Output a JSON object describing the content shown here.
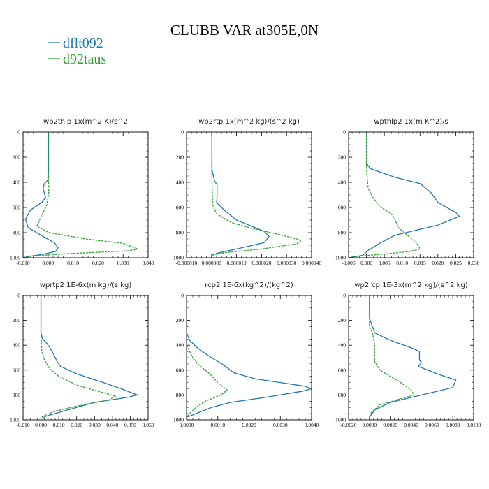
{
  "title": "CLUBB VAR at305E,0N",
  "legend": [
    {
      "label": "dflt092",
      "color": "#1f77b4"
    },
    {
      "label": "d92taus",
      "color": "#2ca02c"
    }
  ],
  "chart_data": [
    {
      "type": "line",
      "title": "wp2thlp   1x(m^2 K)/s^2",
      "xlim": [
        -0.01,
        0.04
      ],
      "ylim": [
        1000,
        0
      ],
      "xticks": [
        "-0.010",
        "0.000",
        "0.010",
        "0.020",
        "0.030",
        "0.040"
      ],
      "yticks": [
        "0",
        "200",
        "400",
        "600",
        "800",
        "1000"
      ],
      "series": [
        {
          "name": "dflt092",
          "points": [
            [
              0.0002,
              0
            ],
            [
              0.0002,
              300
            ],
            [
              0.0,
              380
            ],
            [
              -0.0015,
              410
            ],
            [
              -0.002,
              450
            ],
            [
              -0.001,
              520
            ],
            [
              -0.0025,
              560
            ],
            [
              -0.007,
              620
            ],
            [
              -0.009,
              690
            ],
            [
              -0.008,
              760
            ],
            [
              -0.002,
              830
            ],
            [
              0.0025,
              880
            ],
            [
              0.004,
              920
            ],
            [
              0.003,
              950
            ],
            [
              -0.003,
              975
            ],
            [
              -0.008,
              990
            ],
            [
              -0.01,
              1000
            ]
          ]
        },
        {
          "name": "d92taus",
          "points": [
            [
              0.0001,
              0
            ],
            [
              0.0001,
              300
            ],
            [
              0.0003,
              480
            ],
            [
              -0.0005,
              580
            ],
            [
              -0.003,
              680
            ],
            [
              -0.0045,
              750
            ],
            [
              0.0005,
              800
            ],
            [
              0.015,
              850
            ],
            [
              0.03,
              885
            ],
            [
              0.036,
              930
            ],
            [
              0.032,
              945
            ],
            [
              0.01,
              965
            ],
            [
              -0.006,
              985
            ],
            [
              -0.01,
              1000
            ]
          ]
        }
      ]
    },
    {
      "type": "line",
      "title": "wp2rtp   1x(m^2 kg)/(s^2 kg)",
      "xlim": [
        -1e-05,
        4e-05
      ],
      "ylim": [
        1000,
        0
      ],
      "xticks": [
        "-0.000010",
        "0.000000",
        "0.000010",
        "0.000020",
        "0.000030",
        "0.000040"
      ],
      "yticks": [
        "0",
        "200",
        "400",
        "600",
        "800",
        "1000"
      ],
      "series": [
        {
          "name": "dflt092",
          "points": [
            [
              1e-07,
              0
            ],
            [
              2e-07,
              300
            ],
            [
              1.2e-06,
              390
            ],
            [
              2.2e-06,
              420
            ],
            [
              2.2e-06,
              520
            ],
            [
              2e-06,
              560
            ],
            [
              3.5e-06,
              590
            ],
            [
              5e-06,
              620
            ],
            [
              1e-05,
              700
            ],
            [
              1.5e-05,
              740
            ],
            [
              2.1e-05,
              790
            ],
            [
              2.3e-05,
              830
            ],
            [
              2.1e-05,
              880
            ],
            [
              1e-05,
              930
            ],
            [
              3e-06,
              960
            ],
            [
              0.0,
              980
            ]
          ]
        },
        {
          "name": "d92taus",
          "points": [
            [
              1e-07,
              0
            ],
            [
              1e-07,
              300
            ],
            [
              3e-07,
              500
            ],
            [
              5e-07,
              580
            ],
            [
              2e-06,
              650
            ],
            [
              8e-06,
              720
            ],
            [
              1.5e-05,
              760
            ],
            [
              2.8e-05,
              820
            ],
            [
              3.6e-05,
              860
            ],
            [
              3.4e-05,
              890
            ],
            [
              2e-05,
              930
            ],
            [
              5e-06,
              960
            ],
            [
              0.0,
              980
            ]
          ]
        }
      ]
    },
    {
      "type": "line",
      "title": "wpthlp2   1x(m K^2)/s",
      "xlim": [
        -0.005,
        0.03
      ],
      "ylim": [
        1000,
        0
      ],
      "xticks": [
        "-0.005",
        "0.000",
        "0.005",
        "0.010",
        "0.015",
        "0.020",
        "0.025",
        "0.030"
      ],
      "yticks": [
        "0",
        "200",
        "400",
        "600",
        "800",
        "1000"
      ],
      "series": [
        {
          "name": "dflt092",
          "points": [
            [
              0.0001,
              0
            ],
            [
              0.0001,
              250
            ],
            [
              0.001,
              290
            ],
            [
              0.004,
              320
            ],
            [
              0.008,
              360
            ],
            [
              0.015,
              410
            ],
            [
              0.018,
              480
            ],
            [
              0.02,
              560
            ],
            [
              0.025,
              640
            ],
            [
              0.026,
              670
            ],
            [
              0.02,
              740
            ],
            [
              0.014,
              780
            ],
            [
              0.008,
              820
            ],
            [
              0.004,
              880
            ],
            [
              0.0005,
              940
            ],
            [
              -0.001,
              980
            ],
            [
              -0.005,
              1000
            ]
          ]
        },
        {
          "name": "d92taus",
          "points": [
            [
              0.0,
              0
            ],
            [
              0.0,
              300
            ],
            [
              0.0005,
              450
            ],
            [
              0.002,
              530
            ],
            [
              0.004,
              600
            ],
            [
              0.007,
              650
            ],
            [
              0.008,
              700
            ],
            [
              0.009,
              760
            ],
            [
              0.011,
              810
            ],
            [
              0.014,
              880
            ],
            [
              0.015,
              930
            ],
            [
              0.012,
              950
            ],
            [
              0.005,
              970
            ],
            [
              -0.003,
              990
            ],
            [
              -0.005,
              1000
            ]
          ]
        }
      ]
    },
    {
      "type": "line",
      "title": "wprtp2   1E-6x(m kg)/(s kg)",
      "xlim": [
        -0.01,
        0.06
      ],
      "ylim": [
        1000,
        0
      ],
      "xticks": [
        "-0.010",
        "0.000",
        "0.010",
        "0.020",
        "0.030",
        "0.040",
        "0.050",
        "0.060"
      ],
      "yticks": [
        "0",
        "200",
        "400",
        "600",
        "800",
        "1000"
      ],
      "series": [
        {
          "name": "dflt092",
          "points": [
            [
              0.0,
              0
            ],
            [
              0.0,
              300
            ],
            [
              0.001,
              350
            ],
            [
              0.003,
              380
            ],
            [
              0.005,
              420
            ],
            [
              0.007,
              470
            ],
            [
              0.009,
              530
            ],
            [
              0.011,
              570
            ],
            [
              0.02,
              630
            ],
            [
              0.035,
              700
            ],
            [
              0.045,
              750
            ],
            [
              0.054,
              800
            ],
            [
              0.048,
              820
            ],
            [
              0.03,
              860
            ],
            [
              0.015,
              920
            ],
            [
              0.003,
              970
            ],
            [
              0.0,
              990
            ]
          ]
        },
        {
          "name": "d92taus",
          "points": [
            [
              0.0,
              0
            ],
            [
              0.0,
              300
            ],
            [
              0.0005,
              450
            ],
            [
              0.002,
              520
            ],
            [
              0.005,
              590
            ],
            [
              0.01,
              650
            ],
            [
              0.02,
              720
            ],
            [
              0.032,
              770
            ],
            [
              0.042,
              810
            ],
            [
              0.038,
              840
            ],
            [
              0.02,
              890
            ],
            [
              0.008,
              930
            ],
            [
              0.001,
              970
            ],
            [
              0.0,
              990
            ]
          ]
        }
      ]
    },
    {
      "type": "line",
      "title": "rcp2   1E-6x(kg^2)/(kg^2)",
      "xlim": [
        0.0,
        0.004
      ],
      "ylim": [
        1000,
        0
      ],
      "xticks": [
        "0.0000",
        "0.0010",
        "0.0020",
        "0.0030",
        "0.0040"
      ],
      "yticks": [
        "0",
        "200",
        "400",
        "600",
        "800",
        "1000"
      ],
      "series": [
        {
          "name": "dflt092",
          "points": [
            [
              0.0,
              300
            ],
            [
              0.0001,
              360
            ],
            [
              0.0003,
              410
            ],
            [
              0.0005,
              450
            ],
            [
              0.0008,
              500
            ],
            [
              0.0012,
              560
            ],
            [
              0.0015,
              620
            ],
            [
              0.0022,
              670
            ],
            [
              0.003,
              700
            ],
            [
              0.0038,
              730
            ],
            [
              0.004,
              750
            ],
            [
              0.0037,
              770
            ],
            [
              0.0025,
              820
            ],
            [
              0.0014,
              860
            ],
            [
              0.0008,
              900
            ],
            [
              0.0003,
              950
            ],
            [
              0.0,
              980
            ]
          ]
        },
        {
          "name": "d92taus",
          "points": [
            [
              0.0,
              300
            ],
            [
              0.0,
              400
            ],
            [
              0.0001,
              450
            ],
            [
              0.0002,
              500
            ],
            [
              0.0004,
              560
            ],
            [
              0.0007,
              620
            ],
            [
              0.001,
              700
            ],
            [
              0.0013,
              760
            ],
            [
              0.0011,
              800
            ],
            [
              0.0006,
              850
            ],
            [
              0.0003,
              900
            ],
            [
              0.0001,
              950
            ],
            [
              0.0,
              980
            ]
          ]
        }
      ]
    },
    {
      "type": "line",
      "title": "wp2rcp   1E-3x(m^2 kg)/(s^2 kg)",
      "xlim": [
        -0.002,
        0.01
      ],
      "ylim": [
        1000,
        0
      ],
      "xticks": [
        "-0.0020",
        "0.0000",
        "0.0020",
        "0.0040",
        "0.0060",
        "0.0080",
        "0.0100"
      ],
      "yticks": [
        "0",
        "200",
        "400",
        "600",
        "800",
        "1000"
      ],
      "series": [
        {
          "name": "dflt092",
          "points": [
            [
              0.0,
              0
            ],
            [
              0.0,
              180
            ],
            [
              0.0002,
              230
            ],
            [
              0.0005,
              300
            ],
            [
              0.002,
              360
            ],
            [
              0.004,
              420
            ],
            [
              0.0048,
              450
            ],
            [
              0.0048,
              520
            ],
            [
              0.005,
              540
            ],
            [
              0.0047,
              570
            ],
            [
              0.0065,
              630
            ],
            [
              0.0083,
              680
            ],
            [
              0.008,
              740
            ],
            [
              0.005,
              800
            ],
            [
              0.002,
              860
            ],
            [
              0.0005,
              920
            ],
            [
              0.0,
              980
            ]
          ]
        },
        {
          "name": "d92taus",
          "points": [
            [
              0.0,
              0
            ],
            [
              0.0,
              250
            ],
            [
              0.0003,
              300
            ],
            [
              0.0005,
              400
            ],
            [
              0.0005,
              530
            ],
            [
              0.001,
              600
            ],
            [
              0.002,
              650
            ],
            [
              0.003,
              700
            ],
            [
              0.004,
              760
            ],
            [
              0.0043,
              800
            ],
            [
              0.003,
              830
            ],
            [
              0.001,
              880
            ],
            [
              0.0002,
              940
            ],
            [
              0.0,
              980
            ]
          ]
        }
      ]
    }
  ]
}
